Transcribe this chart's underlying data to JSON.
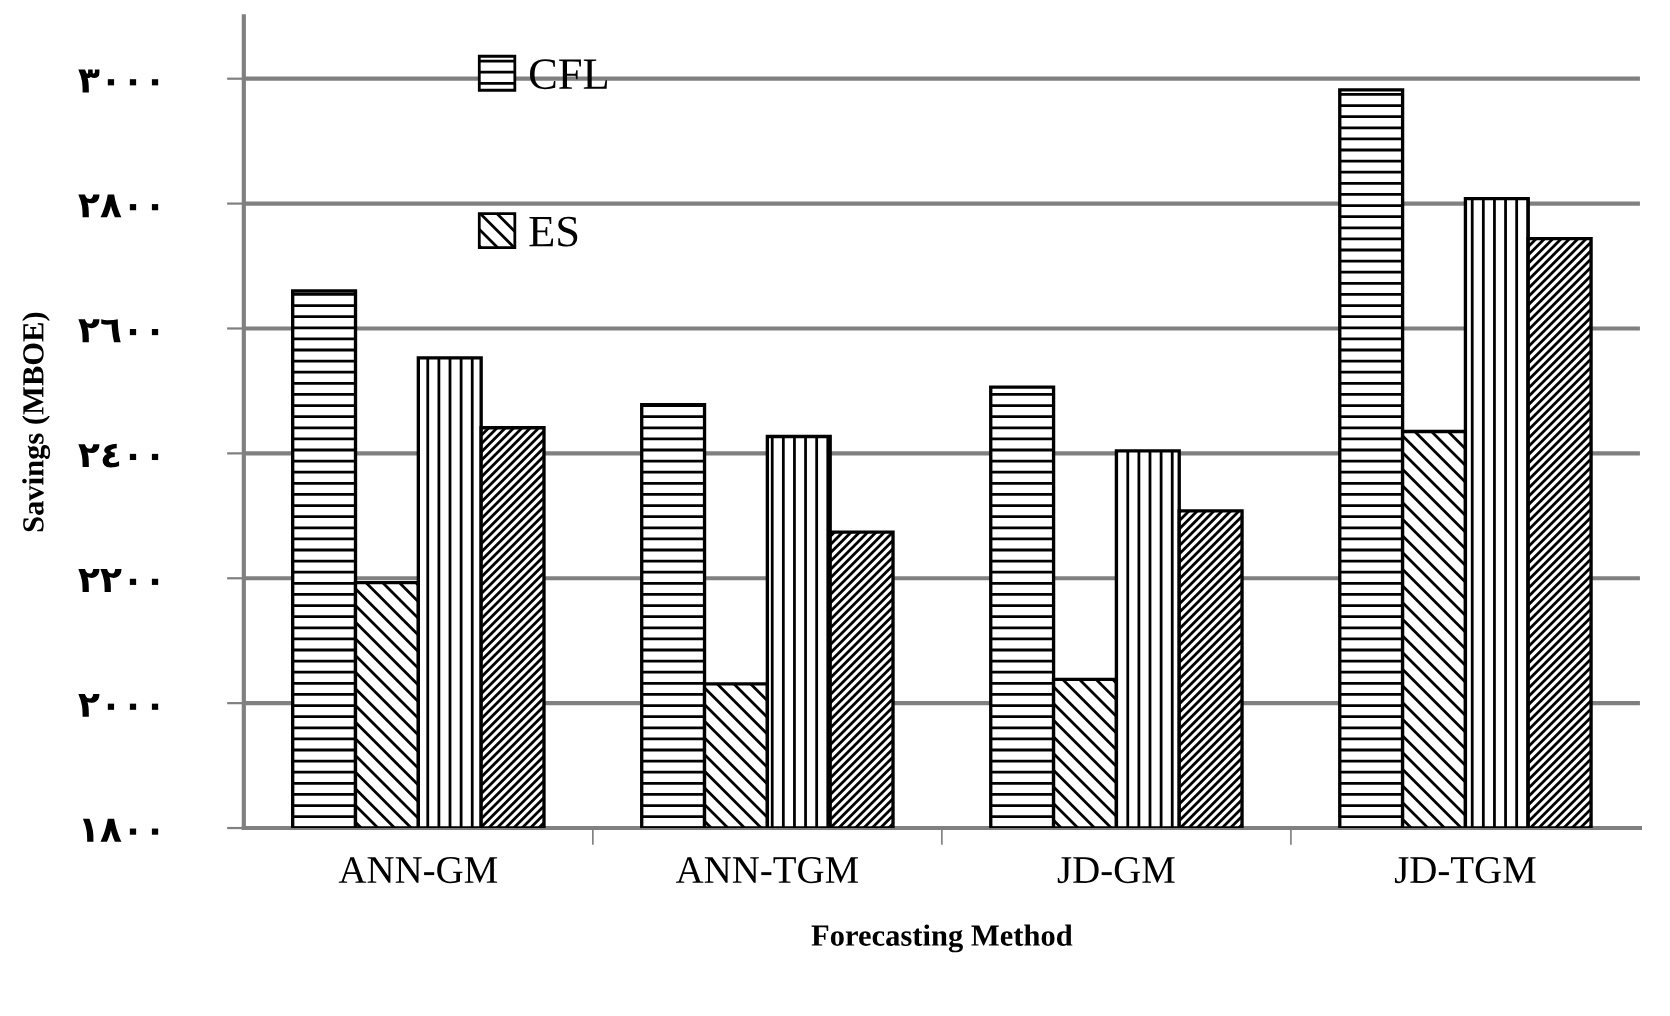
{
  "chart_data": {
    "type": "bar",
    "xlabel": "Forecasting Method",
    "ylabel": "Savings (MBOE)",
    "categories": [
      "ANN-GM",
      "ANN-TGM",
      "JD-GM",
      "JD-TGM"
    ],
    "series": [
      {
        "name": "CFL",
        "color": "#000000",
        "values": [
          2660,
          2478,
          2506,
          2982
        ]
      },
      {
        "name": "ES",
        "color": "#000000",
        "values": [
          2193,
          2031,
          2038,
          2435
        ]
      },
      {
        "color": "#000000",
        "values": [
          2553,
          2427,
          2404,
          2808
        ]
      },
      {
        "color": "#000000",
        "values": [
          2441,
          2274,
          2308,
          2744
        ]
      }
    ],
    "ylim": [
      1800,
      3100
    ],
    "yticks": [
      {
        "value": 1800,
        "label": "۱۸۰۰"
      },
      {
        "value": 2000,
        "label": "۲۰۰۰"
      },
      {
        "value": 2200,
        "label": "۲۲۰۰"
      },
      {
        "value": 2400,
        "label": "۲٤۰۰"
      },
      {
        "value": 2600,
        "label": "۲٦۰۰"
      },
      {
        "value": 2800,
        "label": "۲۸۰۰"
      },
      {
        "value": 3000,
        "label": "۳۰۰۰"
      }
    ],
    "grid": "y",
    "legend": "top left"
  }
}
